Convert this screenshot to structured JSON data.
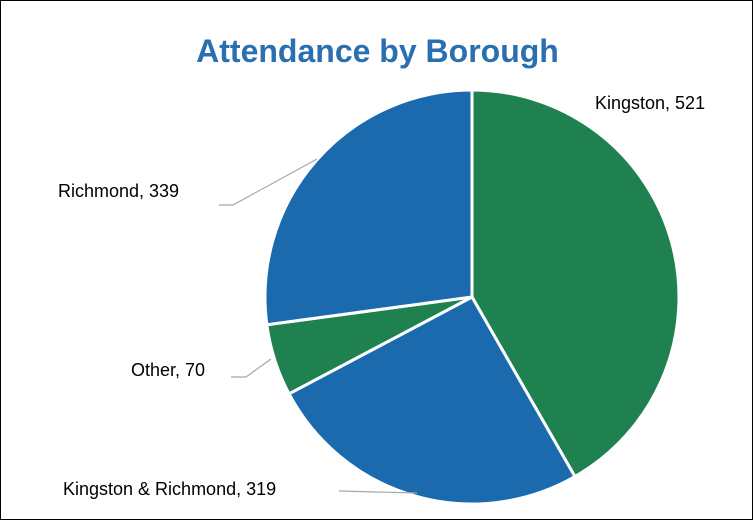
{
  "chart_data": {
    "type": "pie",
    "title": "Attendance by Borough",
    "categories": [
      "Kingston",
      "Kingston & Richmond",
      "Other",
      "Richmond"
    ],
    "values": [
      521,
      319,
      70,
      339
    ],
    "labels": [
      "Kingston, 521",
      "Kingston & Richmond, 319",
      "Other, 70",
      "Richmond, 339"
    ],
    "colors": [
      "#1f8150",
      "#1a6aad",
      "#1f8150",
      "#1a6aad"
    ],
    "start_angle_deg": 0,
    "direction": "clockwise",
    "legend": "none",
    "data_labels": "outside with leader lines"
  }
}
